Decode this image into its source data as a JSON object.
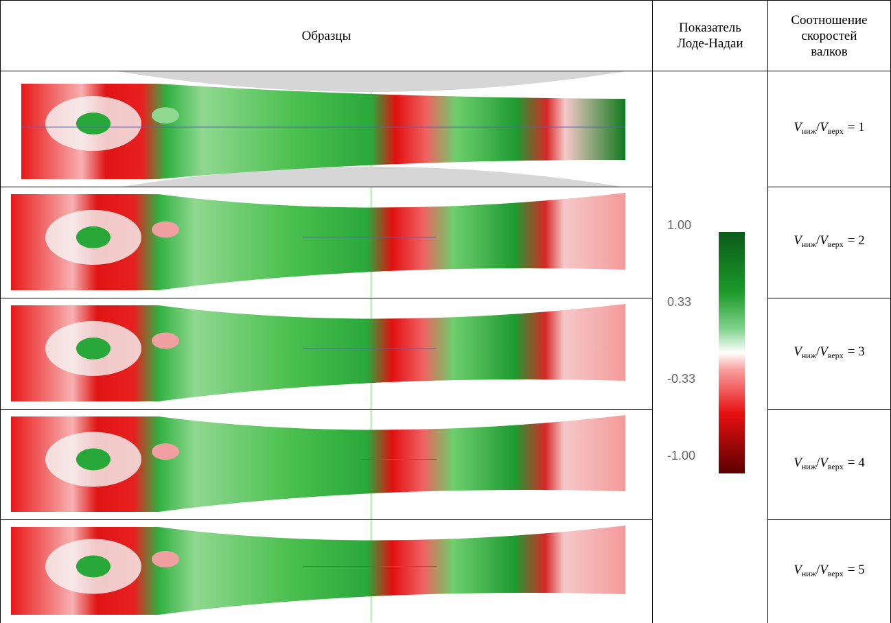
{
  "table": {
    "headers": [
      "Образцы",
      "Показатель Лоде-Надаи",
      "Соотношение скоростей валков"
    ],
    "rows": [
      {
        "ratio": {
          "numerator": "V",
          "numerator_sub": "ниж",
          "slash": "/",
          "denominator": "V",
          "denominator_sub": "верх",
          "equals": "= 1"
        }
      },
      {
        "ratio": {
          "numerator": "V",
          "numerator_sub": "ниж",
          "slash": "/",
          "denominator": "V",
          "denominator_sub": "верх",
          "equals": "= 2"
        }
      },
      {
        "ratio": {
          "numerator": "V",
          "numerator_sub": "ниж",
          "slash": "/",
          "denominator": "V",
          "denominator_sub": "верх",
          "equals": "= 3"
        }
      },
      {
        "ratio": {
          "numerator": "V",
          "numerator_sub": "ниж",
          "slash": "/",
          "denominator": "V",
          "denominator_sub": "верх",
          "equals": "= 4"
        }
      },
      {
        "ratio": {
          "numerator": "V",
          "numerator_sub": "ниж",
          "slash": "/",
          "denominator": "V",
          "denominator_sub": "верх",
          "equals": "= 5"
        }
      }
    ]
  },
  "colorbar": {
    "ticks": [
      "1.00",
      "0.33",
      "-0.33",
      "-1.00"
    ]
  }
}
